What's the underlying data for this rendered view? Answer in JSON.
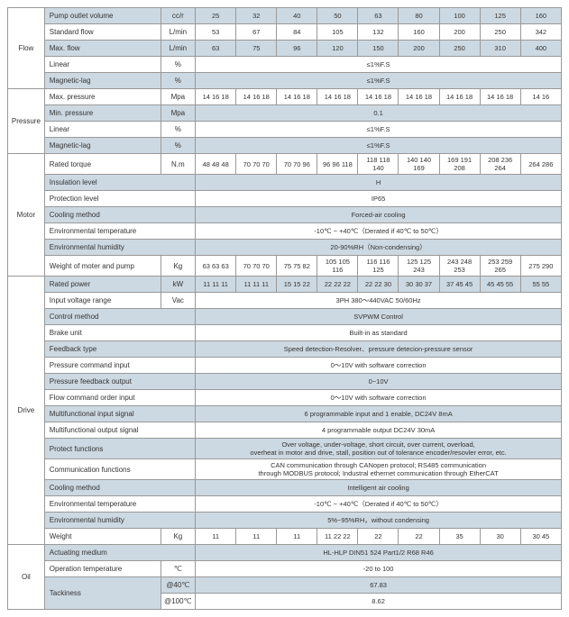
{
  "colors": {
    "shaded": "#cdd9e2",
    "border": "#999999",
    "text": "#333333"
  },
  "categories": {
    "flow": "Flow",
    "pressure": "Pressure",
    "motor": "Motor",
    "drive": "Drive",
    "oil": "Oil"
  },
  "flow": {
    "pump_outlet": {
      "label": "Pump outlet volume",
      "unit": "cc/r",
      "vals": [
        "25",
        "32",
        "40",
        "50",
        "63",
        "80",
        "100",
        "125",
        "160"
      ]
    },
    "std_flow": {
      "label": "Standard flow",
      "unit": "L/min",
      "vals": [
        "53",
        "67",
        "84",
        "105",
        "132",
        "160",
        "200",
        "250",
        "342"
      ]
    },
    "max_flow": {
      "label": "Max. flow",
      "unit": "L/min",
      "vals": [
        "63",
        "75",
        "96",
        "120",
        "150",
        "200",
        "250",
        "310",
        "400"
      ]
    },
    "linear": {
      "label": "Linear",
      "unit": "%",
      "span": "≤1%F.S"
    },
    "maglag": {
      "label": "Magnetic-lag",
      "unit": "%",
      "span": "≤1%F.S"
    }
  },
  "pressure": {
    "max": {
      "label": "Max. pressure",
      "unit": "Mpa",
      "triples": [
        "14 16 18",
        "14 16 18",
        "14 16 18",
        "14 16 18",
        "14 16 18",
        "14 16 18",
        "14 16 18",
        "14 16 18",
        "14 16"
      ]
    },
    "min": {
      "label": "Min. pressure",
      "unit": "Mpa",
      "span": "0.1"
    },
    "linear": {
      "label": "Linear",
      "unit": "%",
      "span": "≤1%F.S"
    },
    "maglag": {
      "label": "Magnetic-lag",
      "unit": "%",
      "span": "≤1%F.S"
    }
  },
  "motor": {
    "torque": {
      "label": "Rated torque",
      "unit": "N.m",
      "triples": [
        "48 48 48",
        "70 70 70",
        "70 70 96",
        "96 96 118",
        "118 118 140",
        "140 140 169",
        "169 191 208",
        "208 236 264",
        "264 286"
      ]
    },
    "insul": {
      "label": "Insulation level",
      "unit": "",
      "span": "H"
    },
    "prot": {
      "label": "Protection level",
      "unit": "",
      "span": "IP65"
    },
    "cool": {
      "label": "Cooling method",
      "unit": "",
      "span": "Forced-air cooling"
    },
    "envt": {
      "label": "Environmental temperature",
      "unit": "",
      "span": "-10℃ ~ +40℃（Derated if 40℃ to 50℃）"
    },
    "envh": {
      "label": "Environmental humidity",
      "unit": "",
      "span": "20-90%RH（Non-condensing）"
    },
    "weight": {
      "label": "Weight of moter and pump",
      "unit": "Kg",
      "triples": [
        "63 63 63",
        "70 70 70",
        "75 75 82",
        "105 105 116",
        "116 116 125",
        "125 125 243",
        "243 248 253",
        "253 259 265",
        "275 290"
      ]
    }
  },
  "drive": {
    "power": {
      "label": "Rated power",
      "unit": "kW",
      "triples": [
        "11 11 11",
        "11 11 11",
        "15 15 22",
        "22 22 22",
        "22 22 30",
        "30 30 37",
        "37 45 45",
        "45 45 55",
        "55 55"
      ]
    },
    "vin": {
      "label": "Input voltage range",
      "unit": "Vac",
      "span": "3PH 380～440VAC 50/60Hz"
    },
    "ctrl": {
      "label": "Control method",
      "unit": "",
      "span": "SVPWM Control"
    },
    "brake": {
      "label": "Brake unit",
      "unit": "",
      "span": "Built-in as standard"
    },
    "fb": {
      "label": "Feedback type",
      "unit": "",
      "span": "Speed detection-Resolver、pressure detecion-pressure sensor"
    },
    "pcmd": {
      "label": "Pressure command input",
      "unit": "",
      "span": "0～10V with software correction"
    },
    "pfb": {
      "label": "Pressure feedback output",
      "unit": "",
      "span": "0~10V"
    },
    "fcmd": {
      "label": "Flow command order input",
      "unit": "",
      "span": "0～10V with software correction"
    },
    "min": {
      "label": "Multifunctional input signal",
      "unit": "",
      "span": "6 programmable input and 1 enable, DC24V 8mA"
    },
    "mout": {
      "label": "Multifunctional output signal",
      "unit": "",
      "span": "4 programmable output DC24V 30mA"
    },
    "protf": {
      "label": "Protect functions",
      "unit": "",
      "span": "Over voltage, under-voltage, short circuit, over current, overload,\noverheat in motor and drive, stall, position out of tolerance encoder/resovler error, etc."
    },
    "comm": {
      "label": "Communication functions",
      "unit": "",
      "span": "CAN communication through CANopen protocol; RS485 communication\nthrough MODBUS protocol; Industral ethernet communication through EtherCAT"
    },
    "cool": {
      "label": "Cooling method",
      "unit": "",
      "span": "Intelligent air cooling"
    },
    "envt": {
      "label": "Environmental temperature",
      "unit": "",
      "span": "-10℃ ~ +40℃（Derated if 40℃ to 50℃）"
    },
    "envh": {
      "label": "Environmental humidity",
      "unit": "",
      "span": "5%~95%RH，without condensing"
    },
    "weight": {
      "label": "Weight",
      "unit": "Kg",
      "mixed": [
        "11",
        "11",
        "11",
        "11  22  22",
        "22",
        "22",
        "35",
        "30",
        "30  45"
      ]
    }
  },
  "oil": {
    "medium": {
      "label": "Actuating medium",
      "unit": "",
      "span": "HL-HLP DIN51 524 Part1/2 R68 R46"
    },
    "optemp": {
      "label": "Operation temperature",
      "unit": "℃",
      "span": "-20 to 100"
    },
    "tack": {
      "label": "Tackiness",
      "unit40": "@40℃",
      "v40": "67.83",
      "unit100": "@100℃",
      "v100": "8.62"
    }
  }
}
